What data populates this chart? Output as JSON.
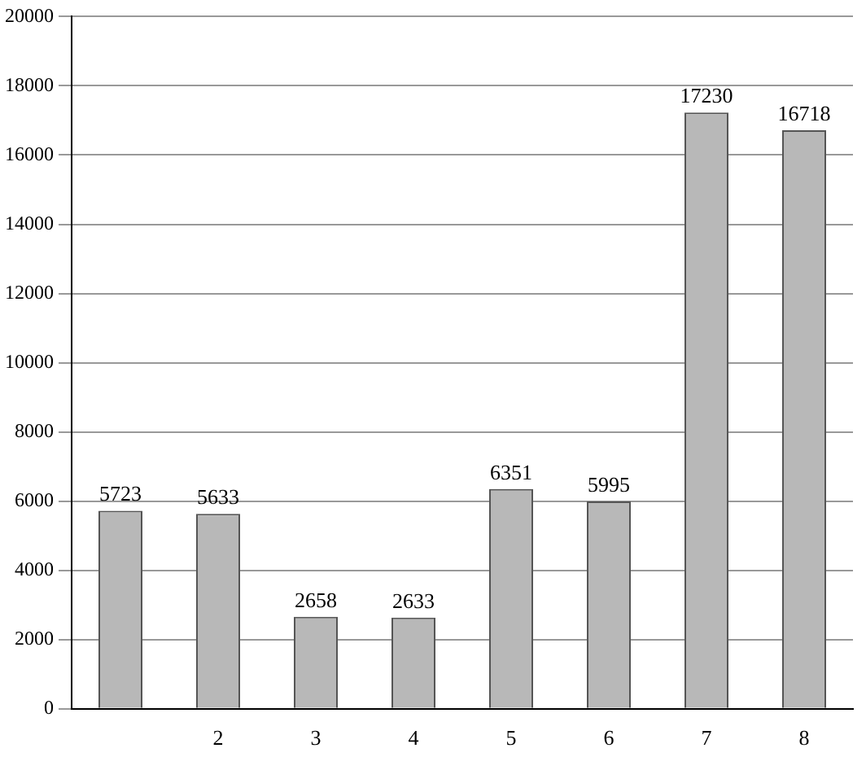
{
  "chart_data": {
    "type": "bar",
    "categories": [
      null,
      "2",
      "3",
      "4",
      "5",
      "6",
      "7",
      "8"
    ],
    "values": [
      5723,
      5633,
      2658,
      2633,
      6351,
      5995,
      17230,
      16718
    ],
    "color": "#b8b8b8",
    "ylim": [
      0,
      20000
    ],
    "yticks": [
      0,
      2000,
      4000,
      6000,
      8000,
      10000,
      12000,
      14000,
      16000,
      18000,
      20000
    ],
    "grid": "y",
    "data_labels": true
  }
}
